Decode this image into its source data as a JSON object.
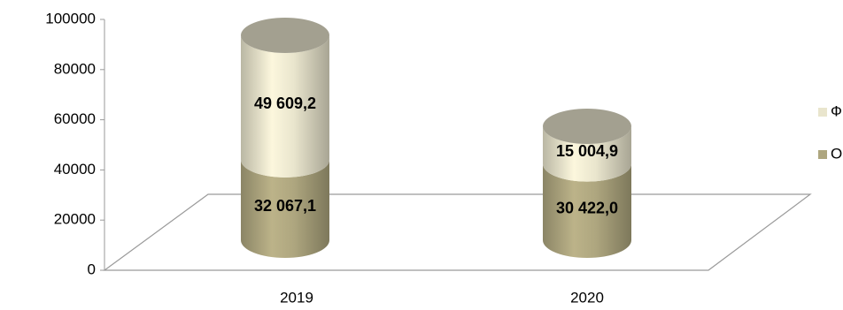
{
  "chart_data": {
    "type": "bar3d_stacked_cylinder",
    "categories": [
      "2019",
      "2020"
    ],
    "series": [
      {
        "name": "ОБ",
        "color": "#aea67f",
        "values": [
          32067.1,
          30422.0
        ],
        "value_labels": [
          "32 067,1",
          "30 422,0"
        ]
      },
      {
        "name": "ФБ",
        "color": "#e9e5cd",
        "values": [
          49609.2,
          15004.9
        ],
        "value_labels": [
          "49 609,2",
          "15 004,9"
        ]
      }
    ],
    "ylim": [
      0,
      100000
    ],
    "yticks": [
      0,
      20000,
      40000,
      60000,
      80000,
      100000
    ],
    "legend": "right"
  }
}
